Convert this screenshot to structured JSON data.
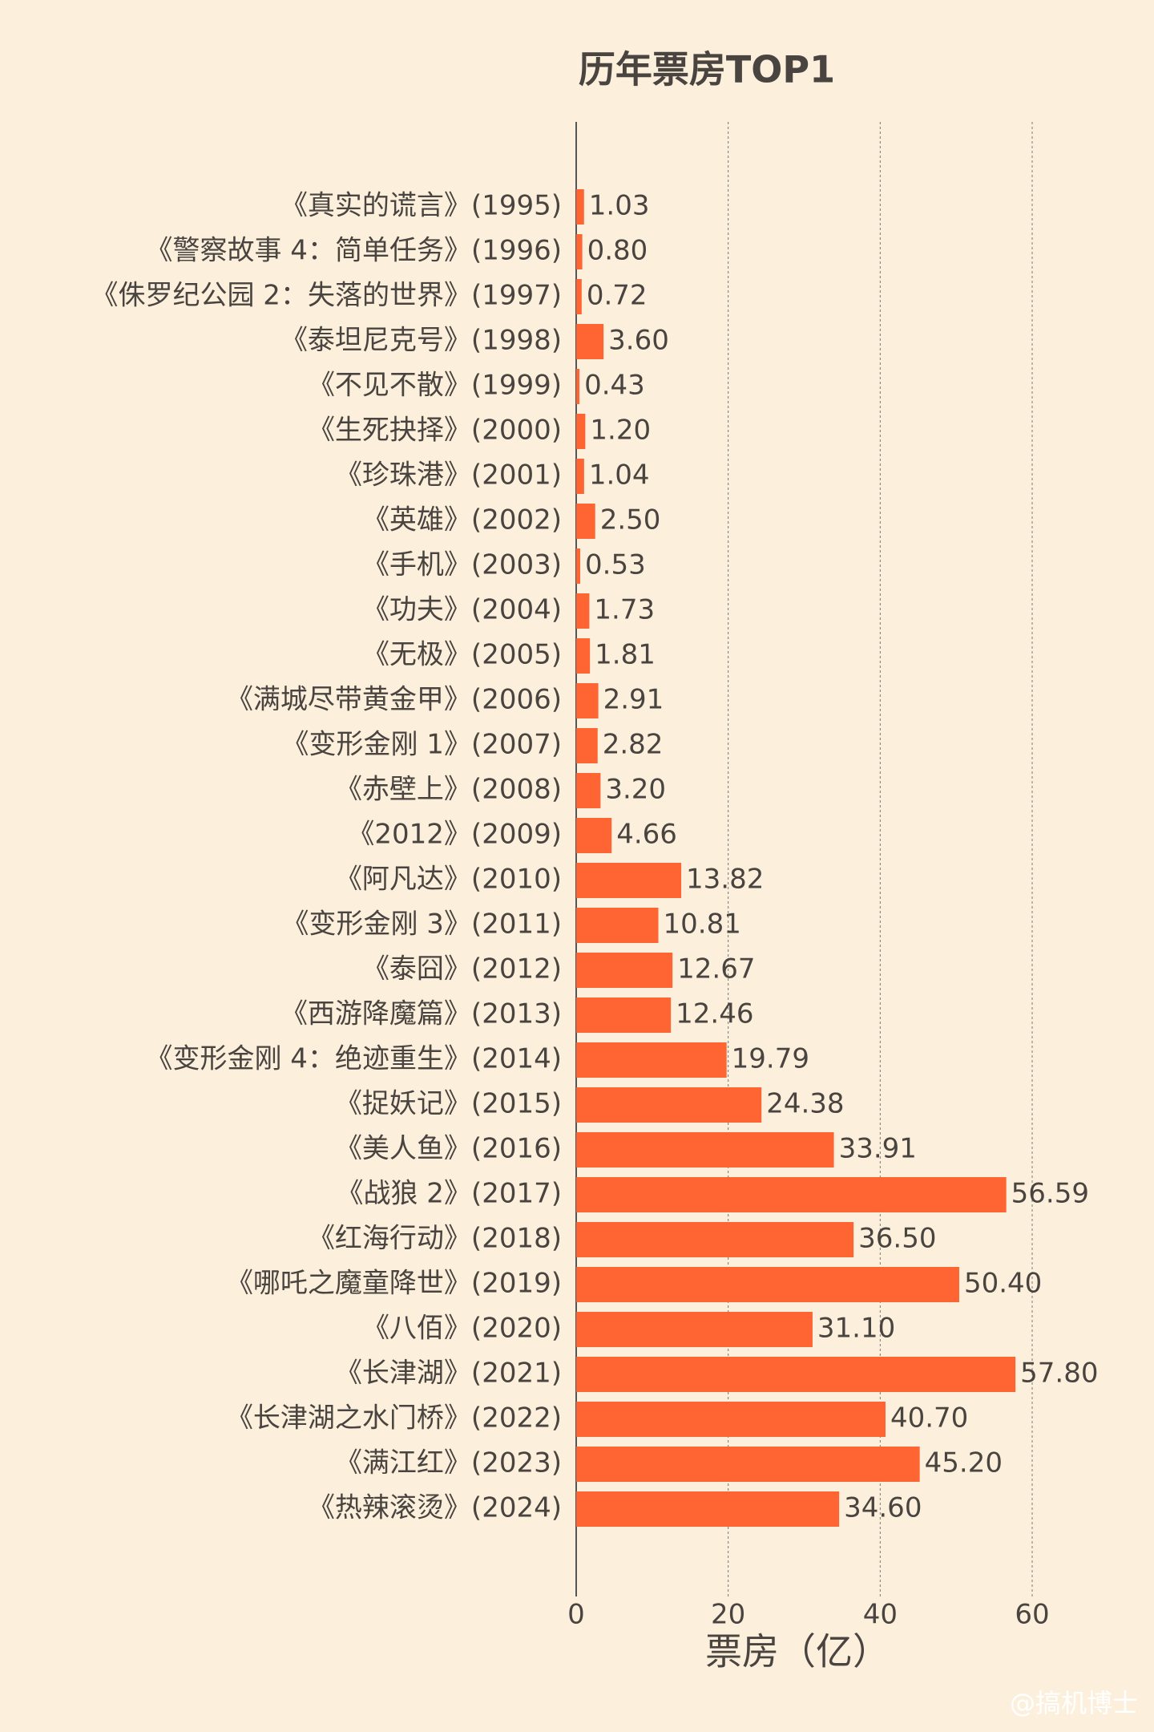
{
  "chart_data": {
    "type": "bar",
    "orientation": "horizontal",
    "title": "历年票房TOP1",
    "x_label": "票房（亿）",
    "categories": [
      "《真实的谎言》(1995)",
      "《警察故事 4：简单任务》(1996)",
      "《侏罗纪公园 2：失落的世界》(1997)",
      "《泰坦尼克号》(1998)",
      "《不见不散》(1999)",
      "《生死抉择》(2000)",
      "《珍珠港》(2001)",
      "《英雄》(2002)",
      "《手机》(2003)",
      "《功夫》(2004)",
      "《无极》(2005)",
      "《满城尽带黄金甲》(2006)",
      "《变形金刚 1》(2007)",
      "《赤壁上》(2008)",
      "《2012》(2009)",
      "《阿凡达》(2010)",
      "《变形金刚 3》(2011)",
      "《泰囧》(2012)",
      "《西游降魔篇》(2013)",
      "《变形金刚 4：绝迹重生》(2014)",
      "《捉妖记》(2015)",
      "《美人鱼》(2016)",
      "《战狼 2》(2017)",
      "《红海行动》(2018)",
      "《哪吒之魔童降世》(2019)",
      "《八佰》(2020)",
      "《长津湖》(2021)",
      "《长津湖之水门桥》(2022)",
      "《满江红》(2023)",
      "《热辣滚烫》(2024)"
    ],
    "values": [
      1.03,
      0.8,
      0.72,
      3.6,
      0.43,
      1.2,
      1.04,
      2.5,
      0.53,
      1.73,
      1.81,
      2.91,
      2.82,
      3.2,
      4.66,
      13.82,
      10.81,
      12.67,
      12.46,
      19.79,
      24.38,
      33.91,
      56.59,
      36.5,
      50.4,
      31.1,
      57.8,
      40.7,
      45.2,
      34.6
    ],
    "value_labels": [
      "1.03",
      "0.80",
      "0.72",
      "3.60",
      "0.43",
      "1.20",
      "1.04",
      "2.50",
      "0.53",
      "1.73",
      "1.81",
      "2.91",
      "2.82",
      "3.20",
      "4.66",
      "13.82",
      "10.81",
      "12.67",
      "12.46",
      "19.79",
      "24.38",
      "33.91",
      "56.59",
      "36.50",
      "50.40",
      "31.10",
      "57.80",
      "40.70",
      "45.20",
      "34.60"
    ],
    "color": "#ff6433",
    "xlim": [
      0,
      60
    ],
    "xticks": [
      0,
      20,
      40,
      60
    ],
    "grid": true
  },
  "watermark": "@搞机博士"
}
